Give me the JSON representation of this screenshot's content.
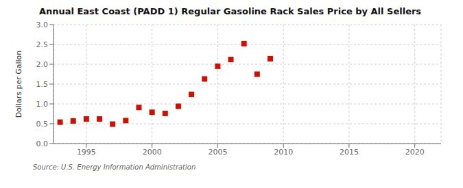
{
  "chart_data": {
    "type": "scatter",
    "title": "Annual East Coast (PADD 1) Regular Gasoline Rack Sales Price by All Sellers",
    "ylabel": "Dollars per Gallon",
    "annotations": [
      "Source: U.S. Energy Information Administration"
    ],
    "x": [
      1993,
      1994,
      1995,
      1996,
      1997,
      1998,
      1999,
      2000,
      2001,
      2002,
      2003,
      2004,
      2005,
      2006,
      2007,
      2008,
      2009
    ],
    "values": [
      0.54,
      0.57,
      0.62,
      0.62,
      0.49,
      0.58,
      0.91,
      0.79,
      0.76,
      0.94,
      1.24,
      1.63,
      1.95,
      2.12,
      2.52,
      1.75,
      2.14
    ],
    "xlim": [
      1992.5,
      2022
    ],
    "ylim": [
      0.0,
      3.0
    ],
    "xticks": [
      1995,
      2000,
      2005,
      2010,
      2015,
      2020
    ],
    "yticks": [
      {
        "value": 0.0,
        "label": "0.0"
      },
      0.5,
      {
        "value": 1.0,
        "label": "1.0"
      },
      1.5,
      {
        "value": 2.0,
        "label": "2.0"
      },
      2.5,
      {
        "value": 3.0,
        "label": "3.0"
      }
    ],
    "color": "#cc1100",
    "marker": "square",
    "grid": true
  }
}
